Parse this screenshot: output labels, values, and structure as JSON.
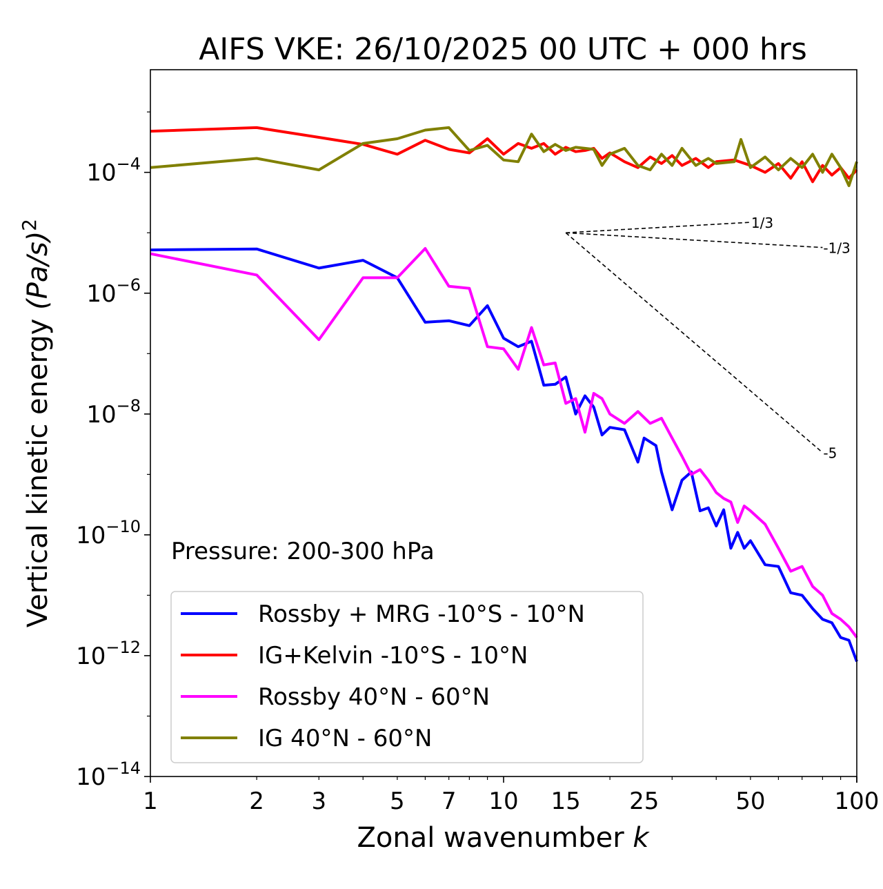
{
  "chart_data": {
    "type": "line",
    "title": "AIFS VKE: 26/10/2025 00 UTC + 000 hrs",
    "xlabel": "Zonal wavenumber",
    "xlabel_var": "k",
    "ylabel": "Vertical kinetic energy",
    "ylabel_units": "(Pa/s)",
    "ylabel_exp": "2",
    "xscale": "log",
    "yscale": "log",
    "xlim": [
      1,
      100
    ],
    "ylim": [
      1e-14,
      0.005
    ],
    "xticks": [
      {
        "value": 1,
        "label": "1"
      },
      {
        "value": 2,
        "label": "2"
      },
      {
        "value": 3,
        "label": "3"
      },
      {
        "value": 5,
        "label": "5"
      },
      {
        "value": 7,
        "label": "7"
      },
      {
        "value": 10,
        "label": "10"
      },
      {
        "value": 15,
        "label": "15"
      },
      {
        "value": 25,
        "label": "25"
      },
      {
        "value": 50,
        "label": "50"
      },
      {
        "value": 100,
        "label": "100"
      }
    ],
    "yticks": [
      {
        "exp": -4,
        "base": "10",
        "sup": "−4"
      },
      {
        "exp": -6,
        "base": "10",
        "sup": "−6"
      },
      {
        "exp": -8,
        "base": "10",
        "sup": "−8"
      },
      {
        "exp": -10,
        "base": "10",
        "sup": "−10"
      },
      {
        "exp": -12,
        "base": "10",
        "sup": "−12"
      },
      {
        "exp": -14,
        "base": "10",
        "sup": "−14"
      }
    ],
    "annotation": "Pressure: 200-300 hPa",
    "legend_position": "lower-left",
    "slopes": [
      {
        "label": "1/3",
        "x": [
          15,
          50
        ],
        "y": [
          1e-05,
          1.49e-05
        ]
      },
      {
        "label": "-1/3",
        "x": [
          15,
          80
        ],
        "y": [
          1e-05,
          5.7e-06
        ]
      },
      {
        "label": "-5",
        "x": [
          15,
          80
        ],
        "y": [
          1e-05,
          2.3e-09
        ]
      }
    ],
    "series": [
      {
        "name": "Rossby + MRG -10°S - 10°N",
        "color": "#0000ff",
        "x": [
          1,
          2,
          3,
          4,
          5,
          6,
          7,
          8,
          9,
          10,
          11,
          12,
          13,
          14,
          15,
          16,
          17,
          18,
          19,
          20,
          22,
          24,
          25,
          27,
          28,
          30,
          32,
          34,
          36,
          38,
          40,
          42,
          44,
          46,
          48,
          50,
          55,
          60,
          65,
          70,
          75,
          80,
          85,
          90,
          95,
          100
        ],
        "y": [
          5.2e-06,
          5.4e-06,
          2.6e-06,
          3.5e-06,
          1.8e-06,
          3.3e-07,
          3.5e-07,
          2.9e-07,
          6.2e-07,
          1.8e-07,
          1.3e-07,
          1.6e-07,
          3e-08,
          3.1e-08,
          4.1e-08,
          1e-08,
          2e-08,
          1.3e-08,
          4.5e-09,
          6e-09,
          5.5e-09,
          1.6e-09,
          4e-09,
          3e-09,
          1.1e-09,
          2.6e-10,
          8e-10,
          1.1e-09,
          2.5e-10,
          2.8e-10,
          1.4e-10,
          2.6e-10,
          6e-11,
          1.1e-10,
          6e-11,
          8e-11,
          3.2e-11,
          3e-11,
          1.1e-11,
          1e-11,
          6e-12,
          4e-12,
          3.5e-12,
          2e-12,
          1.8e-12,
          8e-13
        ]
      },
      {
        "name": "IG+Kelvin -10°S - 10°N",
        "color": "#ff0000",
        "x": [
          1,
          2,
          3,
          4,
          5,
          6,
          7,
          8,
          9,
          10,
          11,
          12,
          13,
          14,
          15,
          16,
          17,
          18,
          19,
          20,
          22,
          24,
          26,
          28,
          30,
          32,
          35,
          38,
          40,
          45,
          50,
          55,
          60,
          65,
          70,
          75,
          80,
          85,
          90,
          95,
          100
        ],
        "y": [
          0.00048,
          0.00055,
          0.00038,
          0.00029,
          0.0002,
          0.00034,
          0.00024,
          0.00021,
          0.00036,
          0.0002,
          0.0003,
          0.00025,
          0.0003,
          0.0002,
          0.00026,
          0.00022,
          0.00023,
          0.00025,
          0.00017,
          0.00021,
          0.00015,
          0.00012,
          0.00018,
          0.00014,
          0.00019,
          0.00013,
          0.00017,
          0.00012,
          0.00015,
          0.00016,
          0.00013,
          0.0001,
          0.00014,
          8e-05,
          0.00015,
          7e-05,
          0.00013,
          9e-05,
          0.00012,
          8e-05,
          0.00011
        ]
      },
      {
        "name": "Rossby 40°N - 60°N",
        "color": "#ff00ff",
        "x": [
          1,
          2,
          3,
          4,
          5,
          6,
          7,
          8,
          9,
          10,
          11,
          12,
          13,
          14,
          15,
          16,
          17,
          18,
          19,
          20,
          22,
          24,
          26,
          28,
          30,
          32,
          34,
          36,
          38,
          40,
          42,
          44,
          46,
          48,
          50,
          55,
          60,
          65,
          70,
          75,
          80,
          85,
          90,
          95,
          100
        ],
        "y": [
          4.5e-06,
          2e-06,
          1.7e-07,
          1.8e-06,
          1.8e-06,
          5.5e-06,
          1.3e-06,
          1.2e-06,
          1.3e-07,
          1.2e-07,
          5.5e-08,
          2.7e-07,
          6.5e-08,
          7e-08,
          1.5e-08,
          1.8e-08,
          5e-09,
          2.2e-08,
          1.8e-08,
          1e-08,
          7e-09,
          1.1e-08,
          7e-09,
          8.5e-09,
          4e-09,
          2e-09,
          1e-09,
          1.2e-09,
          8e-10,
          5e-10,
          4e-10,
          3.5e-10,
          1.6e-10,
          3e-10,
          2.5e-10,
          1.5e-10,
          6e-11,
          2.5e-11,
          3e-11,
          1.4e-11,
          1e-11,
          5e-12,
          4e-12,
          3e-12,
          2e-12
        ]
      },
      {
        "name": "IG 40°N - 60°N",
        "color": "#808000",
        "x": [
          1,
          2,
          3,
          4,
          5,
          6,
          7,
          8,
          9,
          10,
          11,
          12,
          13,
          14,
          15,
          16,
          17,
          18,
          19,
          20,
          22,
          24,
          26,
          28,
          30,
          32,
          35,
          38,
          40,
          45,
          47,
          50,
          55,
          60,
          65,
          70,
          75,
          80,
          85,
          90,
          95,
          100
        ],
        "y": [
          0.00012,
          0.00017,
          0.00011,
          0.0003,
          0.00036,
          0.0005,
          0.00055,
          0.00023,
          0.00028,
          0.00016,
          0.00015,
          0.00043,
          0.00022,
          0.00029,
          0.00023,
          0.00026,
          0.00025,
          0.00024,
          0.00013,
          0.0002,
          0.00025,
          0.00013,
          0.00011,
          0.0002,
          0.00013,
          0.00025,
          0.00013,
          0.00017,
          0.00014,
          0.00015,
          0.00035,
          0.00012,
          0.00018,
          0.00011,
          0.00017,
          0.00012,
          0.0002,
          0.0001,
          0.0002,
          0.00012,
          6e-05,
          0.00015
        ]
      }
    ]
  }
}
